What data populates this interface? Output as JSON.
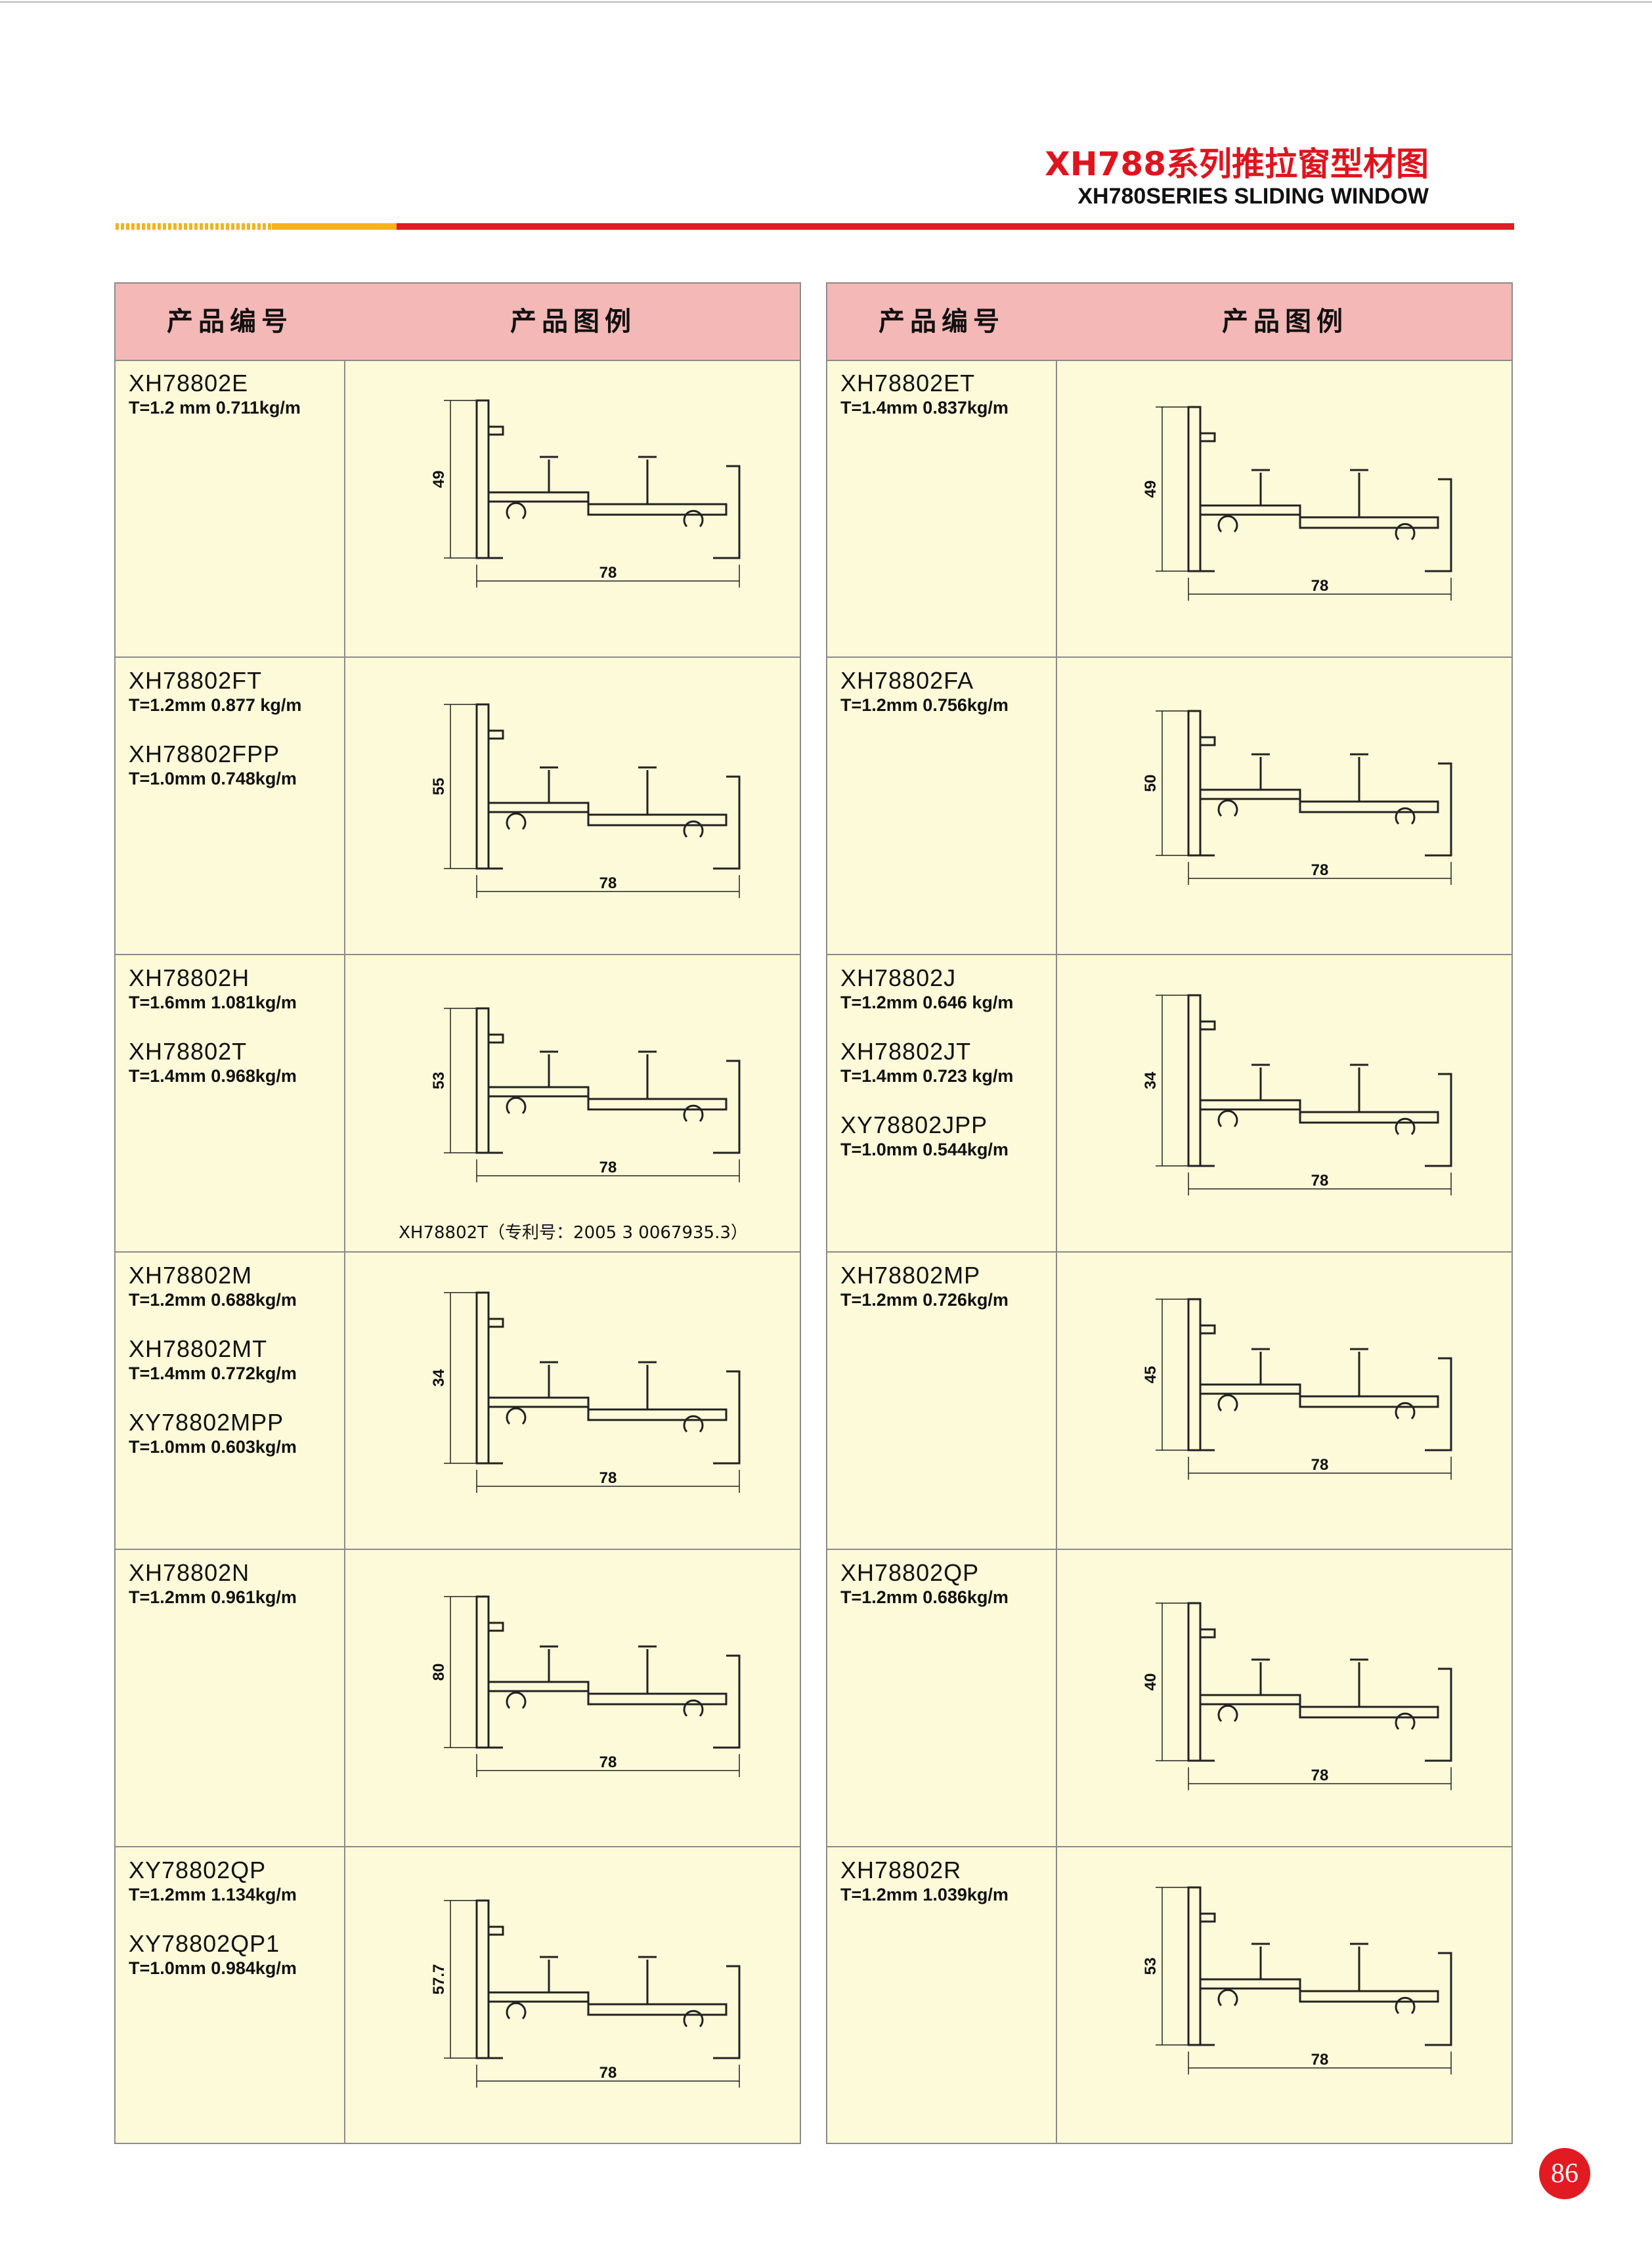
{
  "header": {
    "title_cn": "XH788系列推拉窗型材图",
    "title_en": "XH780SERIES SLIDING WINDOW"
  },
  "columns": {
    "code": "产品编号",
    "figure": "产品图例"
  },
  "page_number": "86",
  "left_rows": [
    {
      "items": [
        {
          "code": "XH78802E",
          "spec": "T=1.2 mm  0.711kg/m"
        }
      ],
      "dim_h": "49",
      "dim_w": "78",
      "note": ""
    },
    {
      "items": [
        {
          "code": "XH78802FT",
          "spec": "T=1.2mm  0.877 kg/m"
        },
        {
          "code": "XH78802FPP",
          "spec": "T=1.0mm   0.748kg/m"
        }
      ],
      "dim_h": "55",
      "dim_w": "78",
      "note": ""
    },
    {
      "items": [
        {
          "code": "XH78802H",
          "spec": "T=1.6mm  1.081kg/m"
        },
        {
          "code": "XH78802T",
          "spec": "T=1.4mm   0.968kg/m"
        }
      ],
      "dim_h": "53",
      "dim_w": "78",
      "note": "XH78802T（专利号：2005 3 0067935.3）"
    },
    {
      "items": [
        {
          "code": "XH78802M",
          "spec": "T=1.2mm    0.688kg/m"
        },
        {
          "code": "XH78802MT",
          "spec": "T=1.4mm    0.772kg/m"
        },
        {
          "code": "XY78802MPP",
          "spec": "T=1.0mm    0.603kg/m"
        }
      ],
      "dim_h": "34",
      "dim_w": "78",
      "note": ""
    },
    {
      "items": [
        {
          "code": "XH78802N",
          "spec": "T=1.2mm     0.961kg/m"
        }
      ],
      "dim_h": "80",
      "dim_w": "78",
      "note": ""
    },
    {
      "items": [
        {
          "code": "XY78802QP",
          "spec": "T=1.2mm  1.134kg/m"
        },
        {
          "code": "XY78802QP1",
          "spec": "T=1.0mm  0.984kg/m"
        }
      ],
      "dim_h": "57.7",
      "dim_w": "78",
      "note": ""
    }
  ],
  "right_rows": [
    {
      "items": [
        {
          "code": "XH78802ET",
          "spec": "T=1.4mm   0.837kg/m"
        }
      ],
      "dim_h": "49",
      "dim_w": "78",
      "note": ""
    },
    {
      "items": [
        {
          "code": "XH78802FA",
          "spec": "T=1.2mm  0.756kg/m"
        }
      ],
      "dim_h": "50",
      "dim_w": "78",
      "note": ""
    },
    {
      "items": [
        {
          "code": "XH78802J",
          "spec": "T=1.2mm    0.646 kg/m"
        },
        {
          "code": "XH78802JT",
          "spec": "T=1.4mm    0.723 kg/m"
        },
        {
          "code": "XY78802JPP",
          "spec": "T=1.0mm   0.544kg/m"
        }
      ],
      "dim_h": "34",
      "dim_w": "78",
      "note": ""
    },
    {
      "items": [
        {
          "code": "XH78802MP",
          "spec": "T=1.2mm  0.726kg/m"
        }
      ],
      "dim_h": "45",
      "dim_w": "78",
      "note": ""
    },
    {
      "items": [
        {
          "code": "XH78802QP",
          "spec": "T=1.2mm    0.686kg/m"
        }
      ],
      "dim_h": "40",
      "dim_w": "78",
      "note": ""
    },
    {
      "items": [
        {
          "code": "XH78802R",
          "spec": "T=1.2mm  1.039kg/m"
        }
      ],
      "dim_h": "53",
      "dim_w": "78",
      "note": ""
    }
  ]
}
